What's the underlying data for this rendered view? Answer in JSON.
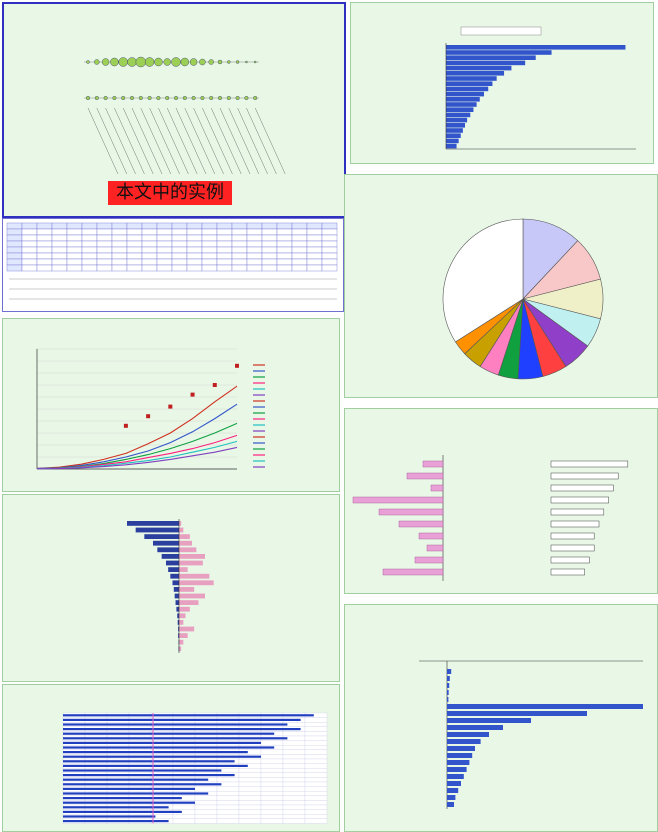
{
  "watermark": {
    "text": "本文中的实例"
  },
  "colors": {
    "panel_bg": "#e8f7e6",
    "blue": "#3355cc",
    "pink": "#e8a0d6",
    "green_bubble": "#9ccf55"
  },
  "chart_data": [
    {
      "id": "bubble-map",
      "type": "scatter",
      "title": "",
      "rows": 2,
      "cols": 20,
      "row1_sizes": [
        3,
        5,
        7,
        8,
        9,
        9,
        10,
        9,
        8,
        7,
        9,
        8,
        7,
        6,
        5,
        4,
        3,
        3,
        2,
        2
      ],
      "row2_sizes": [
        2,
        2,
        2,
        2,
        2,
        2,
        2,
        2,
        2,
        2,
        2,
        2,
        2,
        2,
        2,
        2,
        2,
        2,
        2,
        2
      ]
    },
    {
      "id": "applicant-ranking",
      "type": "bar",
      "title": "",
      "values": [
        170,
        100,
        85,
        75,
        62,
        55,
        48,
        44,
        40,
        36,
        32,
        29,
        26,
        23,
        20,
        18,
        16,
        14,
        12,
        10
      ],
      "xlim": [
        0,
        180
      ]
    },
    {
      "id": "share-pie",
      "type": "pie",
      "title": "",
      "values": [
        12,
        9,
        8,
        6,
        6,
        5,
        5,
        4,
        4,
        4,
        3,
        34
      ],
      "colors": [
        "#c8c8f8",
        "#f8c8c8",
        "#f0f0c8",
        "#c0f0f0",
        "#9040c8",
        "#ff4040",
        "#2040ff",
        "#10a040",
        "#ff80c0",
        "#c8a000",
        "#ff9000",
        "#ffffff"
      ]
    },
    {
      "id": "time-series",
      "type": "line",
      "title": "",
      "series": [
        {
          "values": [
            5,
            15,
            40,
            80,
            130,
            210,
            300,
            420,
            560,
            690
          ],
          "color": "#d03020"
        },
        {
          "values": [
            5,
            10,
            30,
            60,
            100,
            150,
            220,
            310,
            420,
            540
          ],
          "color": "#3355cc"
        },
        {
          "values": [
            3,
            8,
            22,
            45,
            80,
            120,
            170,
            230,
            300,
            380
          ],
          "color": "#10a040"
        },
        {
          "values": [
            3,
            6,
            18,
            38,
            60,
            95,
            130,
            170,
            220,
            280
          ],
          "color": "#ff2080"
        },
        {
          "values": [
            2,
            5,
            14,
            28,
            48,
            70,
            100,
            140,
            180,
            230
          ],
          "color": "#20c0c0"
        },
        {
          "values": [
            2,
            4,
            10,
            20,
            35,
            55,
            80,
            110,
            140,
            180
          ],
          "color": "#8040c0"
        }
      ],
      "scatter_points": [
        860,
        700,
        620,
        520,
        440,
        360
      ],
      "ylim": [
        0,
        1000
      ]
    },
    {
      "id": "compare-bars",
      "type": "bar",
      "title": "",
      "left_values": [
        -120,
        -100,
        -80,
        -60,
        -50,
        -40,
        -30,
        -25,
        -20,
        -15,
        -12,
        -10,
        -8,
        -6,
        -4,
        -3,
        -2,
        -2,
        -1,
        -1
      ],
      "right_values": [
        5,
        10,
        25,
        30,
        40,
        60,
        55,
        20,
        70,
        80,
        35,
        60,
        45,
        25,
        15,
        10,
        35,
        20,
        10,
        5
      ],
      "xlim": [
        -300,
        300
      ]
    },
    {
      "id": "status-matrix",
      "type": "heatmap",
      "title": "",
      "rows": 24,
      "cols": 12,
      "timeline_bars": [
        0.95,
        0.9,
        0.85,
        0.9,
        0.8,
        0.85,
        0.75,
        0.8,
        0.7,
        0.75,
        0.65,
        0.7,
        0.6,
        0.65,
        0.55,
        0.6,
        0.5,
        0.55,
        0.45,
        0.5,
        0.4,
        0.45,
        0.35,
        0.4
      ]
    },
    {
      "id": "div-bars",
      "type": "bar",
      "title": "",
      "left_values": [
        -10,
        -18,
        -6,
        -45,
        -32,
        -22,
        -12,
        -8,
        -14,
        -30
      ],
      "xlim": [
        -40,
        0
      ],
      "right_values": [
        0.8,
        0.7,
        0.65,
        0.6,
        0.55,
        0.5,
        0.45,
        0.45,
        0.4,
        0.35
      ]
    },
    {
      "id": "growth-bars",
      "type": "bar",
      "title": "",
      "values": [
        15,
        10,
        8,
        6,
        5,
        700,
        500,
        300,
        200,
        150,
        120,
        100,
        90,
        80,
        70,
        60,
        50,
        40,
        30,
        25
      ],
      "xlim": [
        -100,
        700
      ]
    }
  ]
}
